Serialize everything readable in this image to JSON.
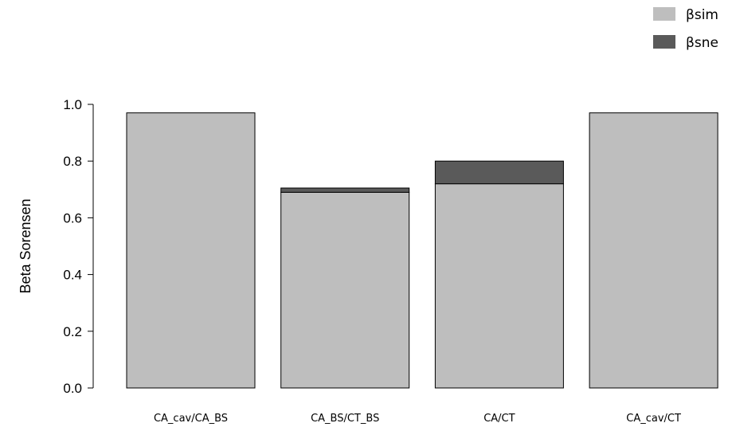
{
  "chart_data": {
    "type": "bar",
    "stacked": true,
    "categories": [
      "CA_cav/CA_BS",
      "CA_BS/CT_BS",
      "CA/CT",
      "CA_cav/CT"
    ],
    "series": [
      {
        "name": "βsim",
        "color": "#bebebe",
        "values": [
          0.97,
          0.69,
          0.72,
          0.97
        ]
      },
      {
        "name": "βsne",
        "color": "#5a5a5a",
        "values": [
          0.0,
          0.015,
          0.08,
          0.0
        ]
      }
    ],
    "title": "",
    "xlabel": "",
    "ylabel": "Beta Sorensen",
    "ylim": [
      0,
      1.0
    ],
    "yticks": [
      "0.0",
      "0.2",
      "0.4",
      "0.6",
      "0.8",
      "1.0"
    ],
    "grid": false,
    "legend_position": "top-right"
  }
}
